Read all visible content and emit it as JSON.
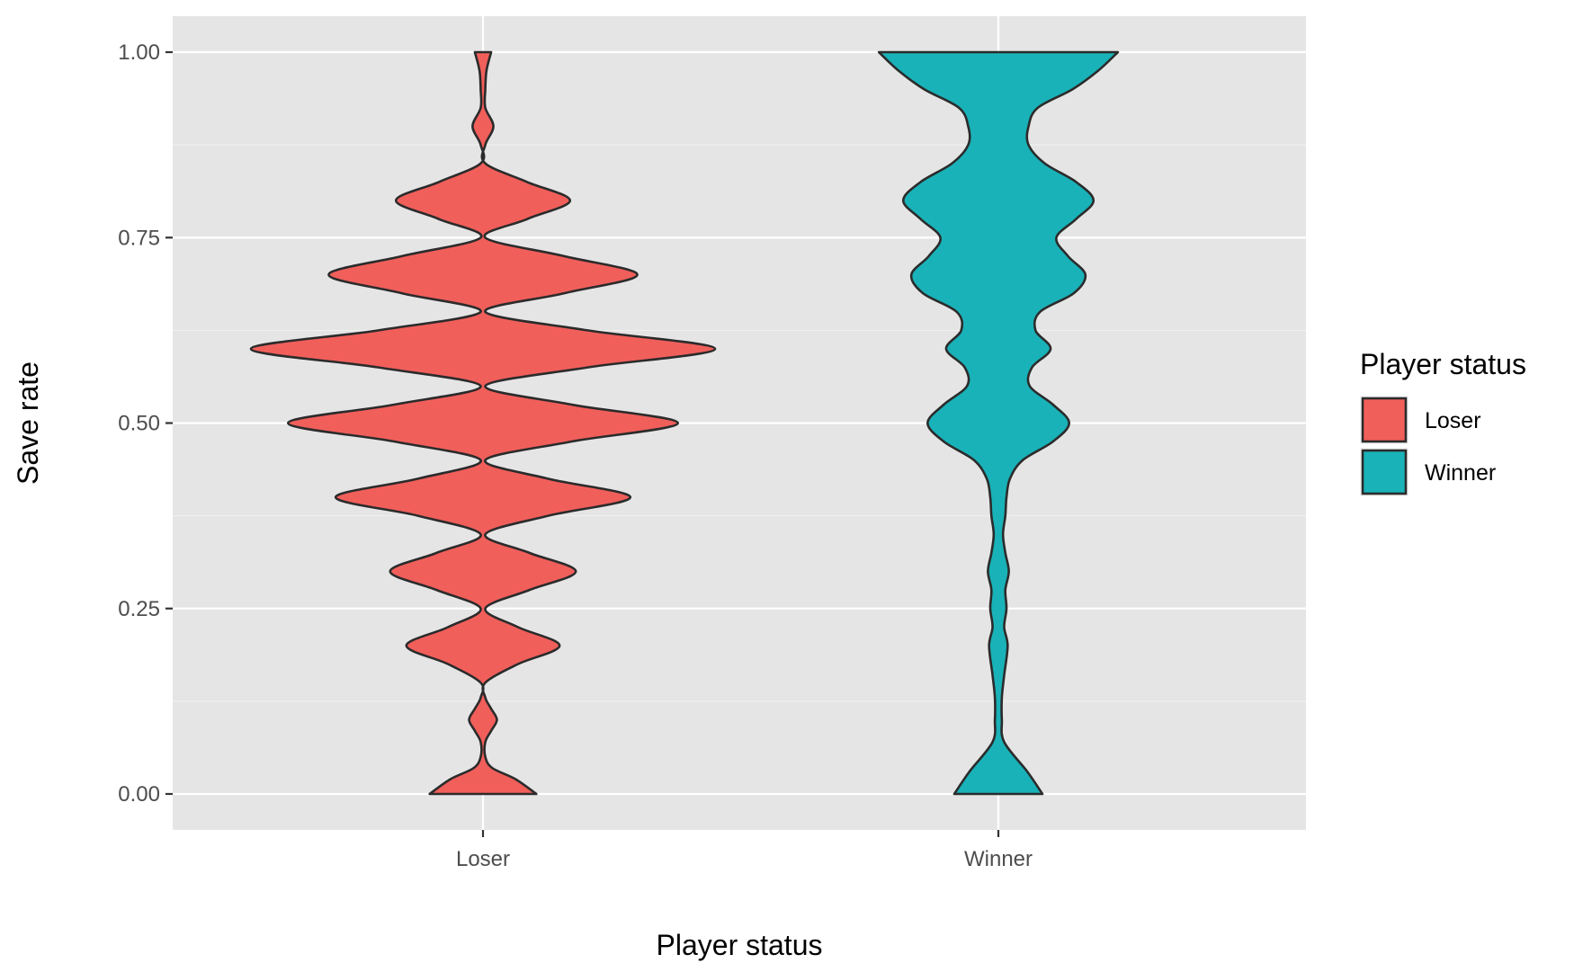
{
  "chart_data": {
    "type": "violin",
    "title": "",
    "xlabel": "Player status",
    "ylabel": "Save rate",
    "ylim": [
      0,
      1
    ],
    "yticks": [
      "0.00",
      "0.25",
      "0.50",
      "0.75",
      "1.00"
    ],
    "ytick_values": [
      0,
      0.25,
      0.5,
      0.75,
      1
    ],
    "categories": [
      "Loser",
      "Winner"
    ],
    "legend": {
      "title": "Player status",
      "placement": "right",
      "entries": [
        {
          "label": "Loser",
          "color": "#F8766D"
        },
        {
          "label": "Winner",
          "color": "#00BFC4"
        }
      ]
    },
    "colors": {
      "panel": "#E5E5E5",
      "loser": "#F15F5B",
      "winner": "#19B2B8",
      "outline": "#2B2B2B"
    },
    "series": [
      {
        "category": "Loser",
        "relative_density": [
          [
            0.0,
            0.46
          ],
          [
            0.02,
            0.28
          ],
          [
            0.035,
            0.08
          ],
          [
            0.05,
            0.02
          ],
          [
            0.07,
            0.02
          ],
          [
            0.085,
            0.07
          ],
          [
            0.1,
            0.12
          ],
          [
            0.115,
            0.07
          ],
          [
            0.13,
            0.02
          ],
          [
            0.15,
            0.02
          ],
          [
            0.175,
            0.3
          ],
          [
            0.2,
            0.66
          ],
          [
            0.225,
            0.3
          ],
          [
            0.25,
            0.02
          ],
          [
            0.275,
            0.4
          ],
          [
            0.3,
            0.8
          ],
          [
            0.325,
            0.4
          ],
          [
            0.35,
            0.02
          ],
          [
            0.375,
            0.56
          ],
          [
            0.4,
            1.27
          ],
          [
            0.425,
            0.56
          ],
          [
            0.45,
            0.02
          ],
          [
            0.475,
            0.76
          ],
          [
            0.5,
            1.68
          ],
          [
            0.525,
            0.76
          ],
          [
            0.55,
            0.02
          ],
          [
            0.575,
            0.9
          ],
          [
            0.6,
            2.0
          ],
          [
            0.625,
            0.9
          ],
          [
            0.65,
            0.02
          ],
          [
            0.675,
            0.7
          ],
          [
            0.7,
            1.33
          ],
          [
            0.725,
            0.7
          ],
          [
            0.75,
            0.02
          ],
          [
            0.775,
            0.38
          ],
          [
            0.8,
            0.75
          ],
          [
            0.825,
            0.38
          ],
          [
            0.85,
            0.02
          ],
          [
            0.875,
            0.02
          ],
          [
            0.9,
            0.09
          ],
          [
            0.925,
            0.02
          ],
          [
            0.95,
            0.02
          ],
          [
            0.975,
            0.03
          ],
          [
            1.0,
            0.07
          ]
        ]
      },
      {
        "category": "Winner",
        "relative_density": [
          [
            0.0,
            0.38
          ],
          [
            0.03,
            0.25
          ],
          [
            0.07,
            0.05
          ],
          [
            0.1,
            0.03
          ],
          [
            0.13,
            0.03
          ],
          [
            0.16,
            0.05
          ],
          [
            0.2,
            0.08
          ],
          [
            0.225,
            0.05
          ],
          [
            0.25,
            0.07
          ],
          [
            0.275,
            0.06
          ],
          [
            0.3,
            0.09
          ],
          [
            0.325,
            0.06
          ],
          [
            0.35,
            0.04
          ],
          [
            0.375,
            0.06
          ],
          [
            0.4,
            0.07
          ],
          [
            0.425,
            0.1
          ],
          [
            0.45,
            0.21
          ],
          [
            0.475,
            0.47
          ],
          [
            0.5,
            0.61
          ],
          [
            0.525,
            0.47
          ],
          [
            0.55,
            0.27
          ],
          [
            0.575,
            0.29
          ],
          [
            0.6,
            0.45
          ],
          [
            0.625,
            0.32
          ],
          [
            0.65,
            0.36
          ],
          [
            0.675,
            0.65
          ],
          [
            0.7,
            0.75
          ],
          [
            0.725,
            0.6
          ],
          [
            0.75,
            0.5
          ],
          [
            0.775,
            0.67
          ],
          [
            0.8,
            0.82
          ],
          [
            0.825,
            0.67
          ],
          [
            0.85,
            0.4
          ],
          [
            0.875,
            0.26
          ],
          [
            0.9,
            0.26
          ],
          [
            0.925,
            0.34
          ],
          [
            0.95,
            0.64
          ],
          [
            0.975,
            0.86
          ],
          [
            1.0,
            1.03
          ]
        ]
      }
    ]
  }
}
